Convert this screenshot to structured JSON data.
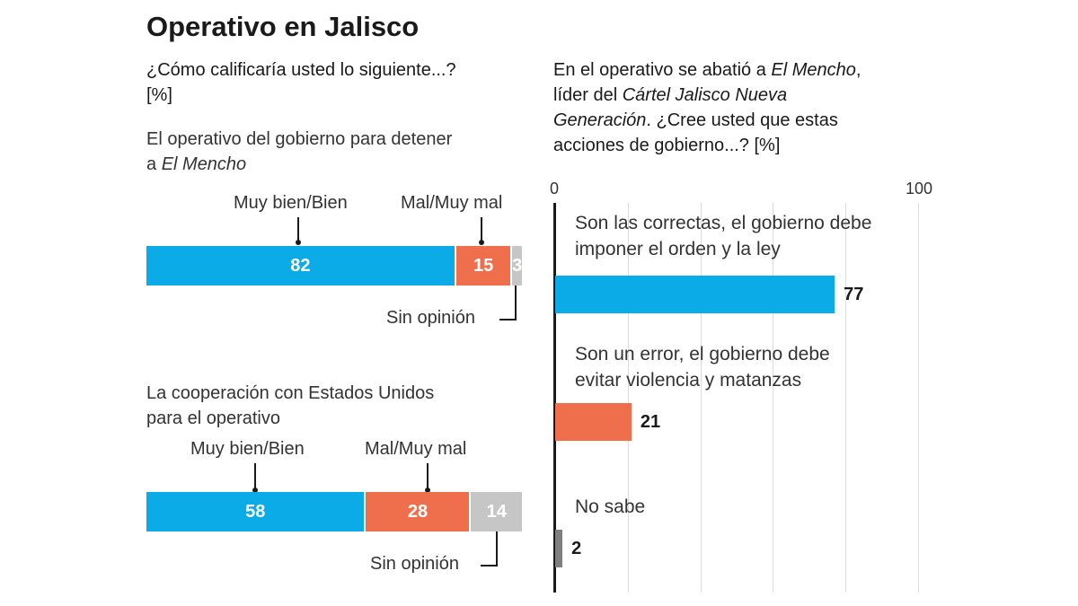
{
  "title": "Operativo en Jalisco",
  "left": {
    "question": "¿Cómo calificaría usted lo siguiente...?",
    "unit": "[%]",
    "item1": {
      "label_line1": "El operativo del gobierno para detener",
      "label_prefix": "a ",
      "label_italic": "El Mencho"
    },
    "item2": {
      "label_line1": "La cooperación con Estados Unidos",
      "label_line2": "para el operativo"
    },
    "legend": {
      "good": "Muy bien/Bien",
      "bad": "Mal/Muy mal",
      "none": "Sin opinión"
    }
  },
  "right": {
    "q_line1_pre": "En el operativo se abatió a ",
    "q_line1_it": "El Mencho",
    "q_line1_post": ",",
    "q_line2_pre": "líder del ",
    "q_line2_it": "Cártel Jalisco Nueva",
    "q_line3_it": "Generación",
    "q_line3_post": ". ¿Cree usted que estas",
    "q_line4": "acciones de gobierno...? [%]",
    "axis_min": "0",
    "axis_max": "100",
    "cat1_l1": "Son las correctas, el gobierno debe",
    "cat1_l2": "imponer el orden y la ley",
    "cat2_l1": "Son un error, el gobierno debe",
    "cat2_l2": "evitar violencia y matanzas",
    "cat3_l1": "No sabe"
  },
  "colors": {
    "blue": "#0aabe6",
    "orange": "#ef6f4c",
    "gray": "#c6c6c6",
    "darkgray": "#7f7f7f"
  },
  "chart_data": [
    {
      "type": "bar",
      "orientation": "horizontal-stacked",
      "title": "¿Cómo calificaría usted lo siguiente...? [%]",
      "categories": [
        "El operativo del gobierno para detener a El Mencho",
        "La cooperación con Estados Unidos para el operativo"
      ],
      "series": [
        {
          "name": "Muy bien/Bien",
          "values": [
            82,
            58
          ]
        },
        {
          "name": "Mal/Muy mal",
          "values": [
            15,
            28
          ]
        },
        {
          "name": "Sin opinión",
          "values": [
            3,
            14
          ]
        }
      ]
    },
    {
      "type": "bar",
      "orientation": "horizontal",
      "title": "En el operativo se abatió a El Mencho, líder del Cártel Jalisco Nueva Generación. ¿Cree usted que estas acciones de gobierno...? [%]",
      "categories": [
        "Son las correctas, el gobierno debe imponer el orden y la ley",
        "Son un error, el gobierno debe evitar violencia y matanzas",
        "No sabe"
      ],
      "values": [
        77,
        21,
        2
      ],
      "xlim": [
        0,
        100
      ]
    }
  ]
}
